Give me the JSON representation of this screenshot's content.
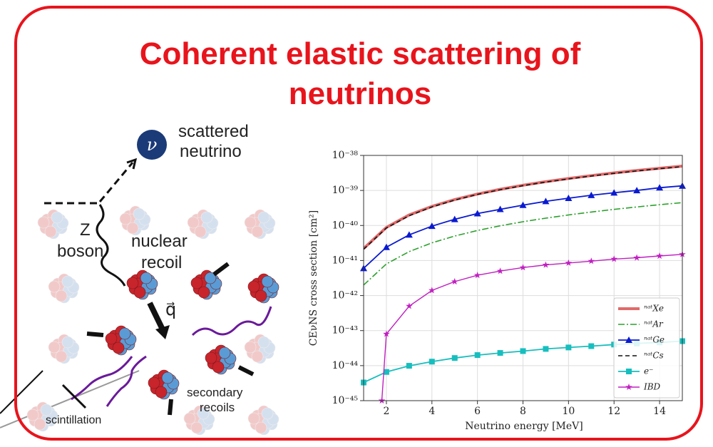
{
  "title": "Coherent elastic scattering of neutrinos",
  "diagram": {
    "neutrino_symbol": "ν",
    "scattered_neutrino": [
      "scattered",
      "neutrino"
    ],
    "z_boson": [
      "Z",
      "boson"
    ],
    "nuclear_recoil": [
      "nuclear",
      "recoil"
    ],
    "momentum": "q⃗",
    "secondary_recoils": [
      "secondary",
      "recoils"
    ],
    "scintillation": "scintillation"
  },
  "chart_data": {
    "type": "line",
    "xlabel": "Neutrino energy [MeV]",
    "ylabel": "CEνNS cross section [cm²]",
    "x": [
      1,
      2,
      3,
      4,
      5,
      6,
      7,
      8,
      9,
      10,
      11,
      12,
      13,
      14,
      15
    ],
    "xlim": [
      1,
      15
    ],
    "xticks": [
      2,
      4,
      6,
      8,
      10,
      12,
      14
    ],
    "ylim": [
      1e-45,
      1e-38
    ],
    "yscale": "log",
    "yticks": [
      {
        "value": 1e-45,
        "label": "10⁻⁴⁵"
      },
      {
        "value": 1e-44,
        "label": "10⁻⁴⁴"
      },
      {
        "value": 1e-43,
        "label": "10⁻⁴³"
      },
      {
        "value": 1e-42,
        "label": "10⁻⁴²"
      },
      {
        "value": 1e-41,
        "label": "10⁻⁴¹"
      },
      {
        "value": 1e-40,
        "label": "10⁻⁴⁰"
      },
      {
        "value": 1e-39,
        "label": "10⁻³⁹"
      },
      {
        "value": 1e-38,
        "label": "10⁻³⁸"
      }
    ],
    "grid": true,
    "legend": "lower right",
    "series": [
      {
        "name": "ⁿᵃᵗXe",
        "color": "#e06a6a",
        "style": "solid",
        "width": 4,
        "marker": "none",
        "values": [
          2.2e-41,
          8.8e-41,
          2e-40,
          3.5e-40,
          5.5e-40,
          7.9e-40,
          1.08e-39,
          1.41e-39,
          1.78e-39,
          2.2e-39,
          2.66e-39,
          3.17e-39,
          3.72e-39,
          4.31e-39,
          4.95e-39
        ]
      },
      {
        "name": "ⁿᵃᵗAr",
        "color": "#2ca02c",
        "style": "dashdot",
        "width": 1.6,
        "marker": "none",
        "values": [
          2e-42,
          8e-42,
          1.8e-41,
          3.2e-41,
          5e-41,
          7.2e-41,
          9.8e-41,
          1.28e-40,
          1.62e-40,
          2e-40,
          2.42e-40,
          2.88e-40,
          3.38e-40,
          3.92e-40,
          4.5e-40
        ]
      },
      {
        "name": "ⁿᵃᵗGe",
        "color": "#0a1ad0",
        "style": "solid",
        "width": 1.8,
        "marker": "triangle",
        "values": [
          6e-42,
          2.4e-41,
          5.4e-41,
          9.6e-41,
          1.5e-40,
          2.2e-40,
          2.9e-40,
          3.8e-40,
          4.9e-40,
          6e-40,
          7.3e-40,
          8.6e-40,
          1e-39,
          1.2e-39,
          1.35e-39
        ]
      },
      {
        "name": "ⁿᵃᵗCs",
        "color": "#111111",
        "style": "dashed",
        "width": 1.6,
        "marker": "none",
        "values": [
          2.1e-41,
          8.5e-41,
          1.9e-40,
          3.4e-40,
          5.3e-40,
          7.7e-40,
          1.05e-39,
          1.37e-39,
          1.73e-39,
          2.13e-39,
          2.58e-39,
          3.07e-39,
          3.6e-39,
          4.18e-39,
          4.8e-39
        ]
      },
      {
        "name": "e⁻",
        "color": "#17bebe",
        "style": "solid",
        "width": 1.8,
        "marker": "square",
        "values": [
          3.3e-45,
          6.6e-45,
          9.9e-45,
          1.3e-44,
          1.65e-44,
          2e-44,
          2.3e-44,
          2.6e-44,
          3e-44,
          3.3e-44,
          3.6e-44,
          4e-44,
          4.3e-44,
          4.6e-44,
          5e-44
        ]
      },
      {
        "name": "IBD",
        "color": "#c020c0",
        "style": "solid",
        "width": 1.4,
        "marker": "star",
        "x": [
          1.8,
          2,
          3,
          4,
          5,
          6,
          7,
          8,
          9,
          10,
          11,
          12,
          13,
          14,
          15
        ],
        "values": [
          1e-45,
          8e-44,
          5e-43,
          1.4e-42,
          2.5e-42,
          3.8e-42,
          5e-42,
          6.3e-42,
          7.5e-42,
          8.5e-42,
          9.6e-42,
          1.1e-41,
          1.2e-41,
          1.35e-41,
          1.5e-41
        ]
      }
    ]
  }
}
